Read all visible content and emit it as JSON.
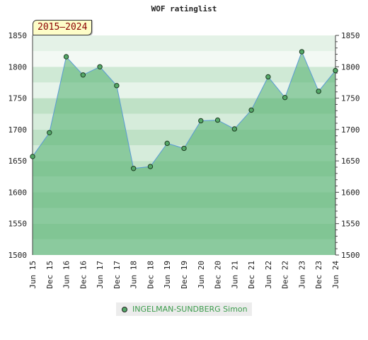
{
  "chart_data": {
    "type": "area",
    "title": "WOF ratinglist",
    "period_label": "2015–2024",
    "xlabel": "",
    "ylabel": "",
    "x": [
      "Jun 15",
      "Dec 15",
      "Jun 16",
      "Dec 16",
      "Jun 17",
      "Dec 17",
      "Jun 18",
      "Dec 18",
      "Jun 19",
      "Dec 19",
      "Jun 20",
      "Dec 20",
      "Jun 21",
      "Dec 21",
      "Jun 22",
      "Dec 22",
      "Jun 23",
      "Dec 23",
      "Jun 24"
    ],
    "series": [
      {
        "name": "INGELMAN-SUNDBERG Simon",
        "values": [
          1657,
          1695,
          1816,
          1787,
          1800,
          1770,
          1638,
          1641,
          1678,
          1670,
          1714,
          1715,
          1701,
          1731,
          1784,
          1751,
          1824,
          1761,
          1794
        ]
      }
    ],
    "ylim": [
      1500,
      1850
    ],
    "yticks": [
      1500,
      1550,
      1600,
      1650,
      1700,
      1750,
      1800,
      1850
    ],
    "grid": true,
    "legend_position": "bottom",
    "colors": {
      "fill": "#55b070",
      "line": "#5b9bd5",
      "marker": "#55a868",
      "band_dark": "#b6dcbf",
      "band_light": "#f1f8f1"
    }
  }
}
